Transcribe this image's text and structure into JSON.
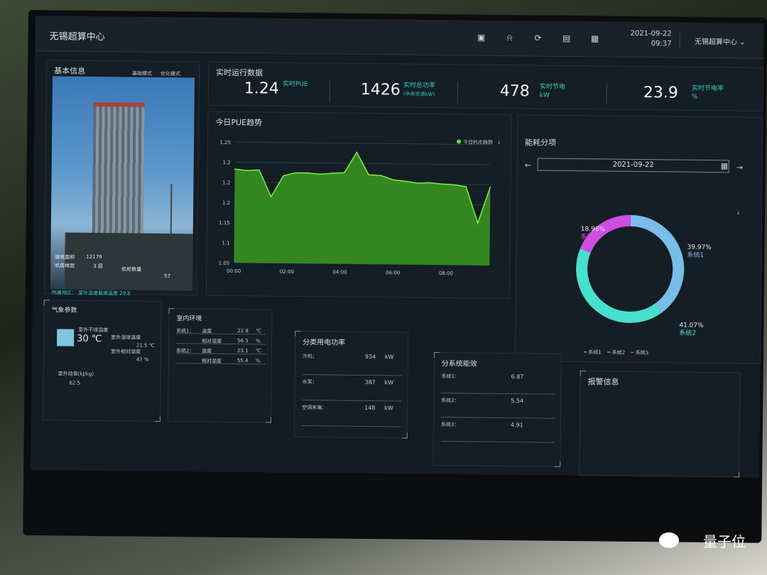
{
  "window": {
    "title": "无锡超算中心"
  },
  "header": {
    "date": "2021-09-22",
    "time": "09:37",
    "user": "无锡超算中心",
    "icons": [
      "monitor-icon",
      "bell-icon",
      "refresh-icon",
      "clipboard-icon",
      "table-icon"
    ]
  },
  "basic_info": {
    "title": "基本信息",
    "mode_a": "基础模式",
    "mode_b": "优化模式",
    "area_label": "建筑面积",
    "area_value": "12179",
    "floor_label": "机房楼层",
    "floor_value": "3 层",
    "cabinet_label": "机柜数量",
    "cabinet_value": "57",
    "footer": "所属地区：   室外温度最高温度 29.8"
  },
  "kpi": {
    "title": "实时运行数据",
    "items": [
      {
        "value": "1.24",
        "label": "实时PUE",
        "sub": ""
      },
      {
        "value": "1426",
        "label": "实时总功率",
        "sub": "(中央空调kW)"
      },
      {
        "value": "478",
        "label": "实时节电",
        "sub": "kW"
      },
      {
        "value": "23.9",
        "label": "实时节电率",
        "sub": "%"
      }
    ]
  },
  "pue_trend": {
    "title": "今日PUE趋势",
    "legend": "今日PUE趋势",
    "y_ticks": [
      "1.25",
      "1.2",
      "1.2",
      "1.2",
      "1.15",
      "1.1",
      "1.05"
    ],
    "x_ticks": [
      "00:00",
      "02:00",
      "04:00",
      "06:00",
      "08:00"
    ]
  },
  "energy_split": {
    "title": "能耗分项",
    "date": "2021-09-22",
    "slices": [
      {
        "name": "系统1",
        "pct": "39.97%",
        "value": 39.97,
        "color": "#79bde8"
      },
      {
        "name": "系统2",
        "pct": "41.07%",
        "value": 41.07,
        "color": "#46e0cf"
      },
      {
        "name": "系统3",
        "pct": "18.96%",
        "value": 18.96,
        "color": "#cf4fe0"
      }
    ],
    "legend": [
      "系统1",
      "系统2",
      "系统3"
    ]
  },
  "weather": {
    "title": "气象参数",
    "temp": "30 ℃",
    "dry_label": "室外干球温度",
    "wet_label": "室外湿球温度",
    "wet_value": "21.5 ℃",
    "rh_label": "室外相对湿度",
    "rh_value": "47 %",
    "enth_label": "室外焓值(kJ/kg)",
    "enth_value": "62.5"
  },
  "indoor": {
    "title": "室内环境",
    "rows": [
      {
        "sys": "系统1：",
        "name": "温度",
        "value": "22.8",
        "unit": "℃"
      },
      {
        "sys": "",
        "name": "相对湿度",
        "value": "56.3",
        "unit": "%"
      },
      {
        "sys": "系统2：",
        "name": "温度",
        "value": "23.1",
        "unit": "℃"
      },
      {
        "sys": "",
        "name": "相对湿度",
        "value": "55.4",
        "unit": "%"
      }
    ]
  },
  "power": {
    "title": "分类用电功率",
    "rows": [
      {
        "name": "冷机：",
        "value": "934",
        "unit": "kW"
      },
      {
        "name": "水泵：",
        "value": "387",
        "unit": "kW"
      },
      {
        "name": "空调末端：",
        "value": "148",
        "unit": "kW"
      }
    ]
  },
  "efficiency": {
    "title": "分系统能效",
    "rows": [
      {
        "name": "系统1：",
        "value": "6.87"
      },
      {
        "name": "系统2：",
        "value": "5.54"
      },
      {
        "name": "系统3：",
        "value": "4.91"
      }
    ]
  },
  "alarms": {
    "title": "报警信息"
  },
  "watermark": {
    "text": "量子位"
  },
  "chart_data": [
    {
      "type": "area",
      "title": "今日PUE趋势",
      "series": [
        {
          "name": "今日PUE趋势",
          "x": [
            "00:00",
            "00:30",
            "01:00",
            "01:15",
            "01:30",
            "02:00",
            "02:30",
            "03:00",
            "03:30",
            "04:00",
            "04:15",
            "04:30",
            "05:00",
            "05:30",
            "06:00",
            "06:30",
            "07:00",
            "07:30",
            "08:00",
            "08:30",
            "08:45",
            "09:00"
          ],
          "values": [
            1.205,
            1.203,
            1.204,
            1.16,
            1.195,
            1.2,
            1.2,
            1.198,
            1.2,
            1.201,
            1.235,
            1.198,
            1.197,
            1.19,
            1.188,
            1.185,
            1.186,
            1.184,
            1.183,
            1.18,
            1.12,
            1.18
          ]
        }
      ],
      "x_ticks": [
        "00:00",
        "02:00",
        "04:00",
        "06:00",
        "08:00"
      ],
      "ylim": [
        1.05,
        1.25
      ]
    },
    {
      "type": "pie",
      "title": "能耗分项",
      "categories": [
        "系统1",
        "系统2",
        "系统3"
      ],
      "values": [
        39.97,
        41.07,
        18.96
      ]
    }
  ]
}
